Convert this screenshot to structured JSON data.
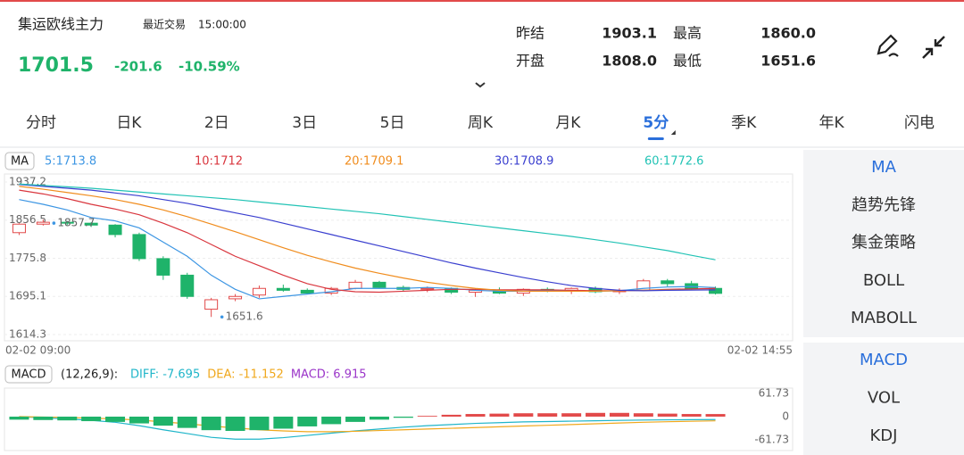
{
  "header": {
    "name": "集运欧线主力",
    "last_trade_label": "最近交易",
    "last_trade_time": "15:00:00",
    "price": "1701.5",
    "change": "-201.6",
    "change_pct": "-10.59%"
  },
  "stats": [
    {
      "label": "昨结",
      "value": "1903.1"
    },
    {
      "label": "最高",
      "value": "1860.0"
    },
    {
      "label": "开盘",
      "value": "1808.0"
    },
    {
      "label": "最低",
      "value": "1651.6"
    }
  ],
  "tabs": [
    "分时",
    "日K",
    "2日",
    "3日",
    "5日",
    "周K",
    "月K",
    "5分",
    "季K",
    "年K",
    "闪电"
  ],
  "active_tab": 7,
  "side_panel": {
    "main": [
      "MA",
      "趋势先锋",
      "集金策略",
      "BOLL",
      "MABOLL"
    ],
    "sub": [
      "MACD",
      "VOL",
      "KDJ"
    ]
  },
  "chart_data": [
    {
      "type": "candlestick",
      "indicator": "MA",
      "categories": [
        "02-02 09:00",
        null,
        null,
        null,
        null,
        null,
        null,
        null,
        null,
        null,
        null,
        null,
        null,
        null,
        null,
        null,
        null,
        null,
        null,
        null,
        null,
        null,
        null,
        null,
        null,
        null,
        null,
        null,
        null,
        "02-02 14:55"
      ],
      "open": [
        1830,
        1848,
        1852,
        1850,
        1846,
        1826,
        1775,
        1740,
        1668,
        1690,
        1698,
        1712,
        1708,
        1702,
        1712,
        1725,
        1714,
        1710,
        1712,
        1704,
        1708,
        1702,
        1710,
        1706,
        1712,
        1705,
        1708,
        1728,
        1722,
        1712
      ],
      "high": [
        1850,
        1857.7,
        1855,
        1852,
        1848,
        1830,
        1780,
        1745,
        1692,
        1700,
        1718,
        1720,
        1712,
        1715,
        1730,
        1728,
        1718,
        1716,
        1714,
        1712,
        1714,
        1712,
        1714,
        1714,
        1716,
        1712,
        1732,
        1732,
        1728,
        1716
      ],
      "low": [
        1825,
        1845,
        1846,
        1842,
        1820,
        1770,
        1730,
        1690,
        1651.6,
        1685,
        1692,
        1705,
        1700,
        1698,
        1710,
        1712,
        1706,
        1704,
        1700,
        1694,
        1700,
        1696,
        1704,
        1700,
        1702,
        1700,
        1706,
        1716,
        1708,
        1699
      ],
      "close": [
        1848,
        1852,
        1850,
        1846,
        1826,
        1775,
        1740,
        1695,
        1688,
        1695,
        1712,
        1708,
        1702,
        1712,
        1725,
        1714,
        1710,
        1712,
        1704,
        1708,
        1702,
        1710,
        1706,
        1712,
        1705,
        1708,
        1728,
        1722,
        1712,
        1701.5
      ],
      "high_mark": 1857.7,
      "low_mark": 1651.6,
      "ylim": [
        1614.3,
        1937.2
      ],
      "yticks": [
        1937.2,
        1856.5,
        1775.8,
        1695.1,
        1614.3
      ],
      "grid": true,
      "up_color": "#e24a4a",
      "down_color": "#1fb36a",
      "series": [
        {
          "name": "5",
          "label": "5:1713.8",
          "color": "#3d96e3",
          "values": [
            1900,
            1890,
            1878,
            1862,
            1855,
            1840,
            1810,
            1780,
            1740,
            1710,
            1690,
            1695,
            1700,
            1705,
            1712,
            1712,
            1712,
            1714,
            1712,
            1708,
            1706,
            1706,
            1708,
            1707,
            1706,
            1707,
            1712,
            1715,
            1716,
            1713.8
          ]
        },
        {
          "name": "10",
          "label": "10:1712",
          "color": "#d9363e",
          "values": [
            1920,
            1912,
            1902,
            1890,
            1880,
            1868,
            1850,
            1830,
            1805,
            1780,
            1760,
            1740,
            1722,
            1710,
            1705,
            1704,
            1706,
            1708,
            1710,
            1710,
            1709,
            1709,
            1709,
            1708,
            1707,
            1707,
            1708,
            1710,
            1711,
            1712
          ]
        },
        {
          "name": "20",
          "label": "20:1709.1",
          "color": "#f08c1d",
          "values": [
            1928,
            1922,
            1915,
            1908,
            1900,
            1890,
            1878,
            1864,
            1848,
            1832,
            1815,
            1798,
            1782,
            1768,
            1755,
            1744,
            1734,
            1725,
            1718,
            1712,
            1708,
            1706,
            1706,
            1706,
            1706,
            1707,
            1708,
            1709,
            1709,
            1709.1
          ]
        },
        {
          "name": "30",
          "label": "30:1708.9",
          "color": "#3a3fcf",
          "values": [
            1932,
            1928,
            1924,
            1920,
            1914,
            1908,
            1900,
            1892,
            1882,
            1872,
            1862,
            1850,
            1838,
            1826,
            1814,
            1802,
            1790,
            1778,
            1766,
            1755,
            1745,
            1735,
            1726,
            1718,
            1712,
            1708,
            1707,
            1708,
            1708.5,
            1708.9
          ]
        },
        {
          "name": "60",
          "label": "60:1772.6",
          "color": "#22c3b5",
          "values": [
            1933,
            1930,
            1927,
            1924,
            1920,
            1916,
            1912,
            1908,
            1904,
            1900,
            1895,
            1890,
            1885,
            1880,
            1875,
            1870,
            1864,
            1858,
            1852,
            1846,
            1840,
            1834,
            1828,
            1822,
            1815,
            1808,
            1800,
            1792,
            1782,
            1772.6
          ]
        }
      ]
    },
    {
      "type": "macd",
      "indicator": "MACD",
      "params": "(12,26,9):",
      "ylim": [
        -61.73,
        61.73
      ],
      "yticks": [
        61.73,
        0,
        -61.73
      ],
      "up_color": "#e24a4a",
      "down_color": "#1fb36a",
      "series": [
        {
          "name": "DIFF",
          "label": "DIFF: -7.695",
          "color": "#1fb5c9",
          "values": [
            0,
            -3,
            -6,
            -10,
            -15,
            -24,
            -35,
            -45,
            -55,
            -60,
            -60,
            -56,
            -50,
            -44,
            -38,
            -33,
            -28,
            -24,
            -21,
            -18,
            -16,
            -14,
            -13,
            -12,
            -11,
            -10,
            -9,
            -8.5,
            -8,
            -7.695
          ]
        },
        {
          "name": "DEA",
          "label": "DEA: -11.152",
          "color": "#f0a81d",
          "values": [
            0,
            -1,
            -2,
            -4,
            -6,
            -9,
            -14,
            -19,
            -25,
            -30,
            -35,
            -38,
            -40,
            -40,
            -39,
            -37,
            -35,
            -33,
            -31,
            -29,
            -27,
            -25,
            -23,
            -21,
            -19,
            -17,
            -15,
            -13.5,
            -12.3,
            -11.152
          ]
        },
        {
          "name": "MACD",
          "label": "MACD: 6.915",
          "color": "#9b36c9",
          "values": [
            -8,
            -9,
            -10,
            -12,
            -14,
            -18,
            -24,
            -30,
            -36,
            -38,
            -36,
            -32,
            -26,
            -20,
            -14,
            -8,
            -3,
            2,
            5,
            7,
            8,
            9,
            9,
            9,
            10,
            10,
            9,
            8,
            7,
            6.915
          ]
        }
      ]
    }
  ]
}
